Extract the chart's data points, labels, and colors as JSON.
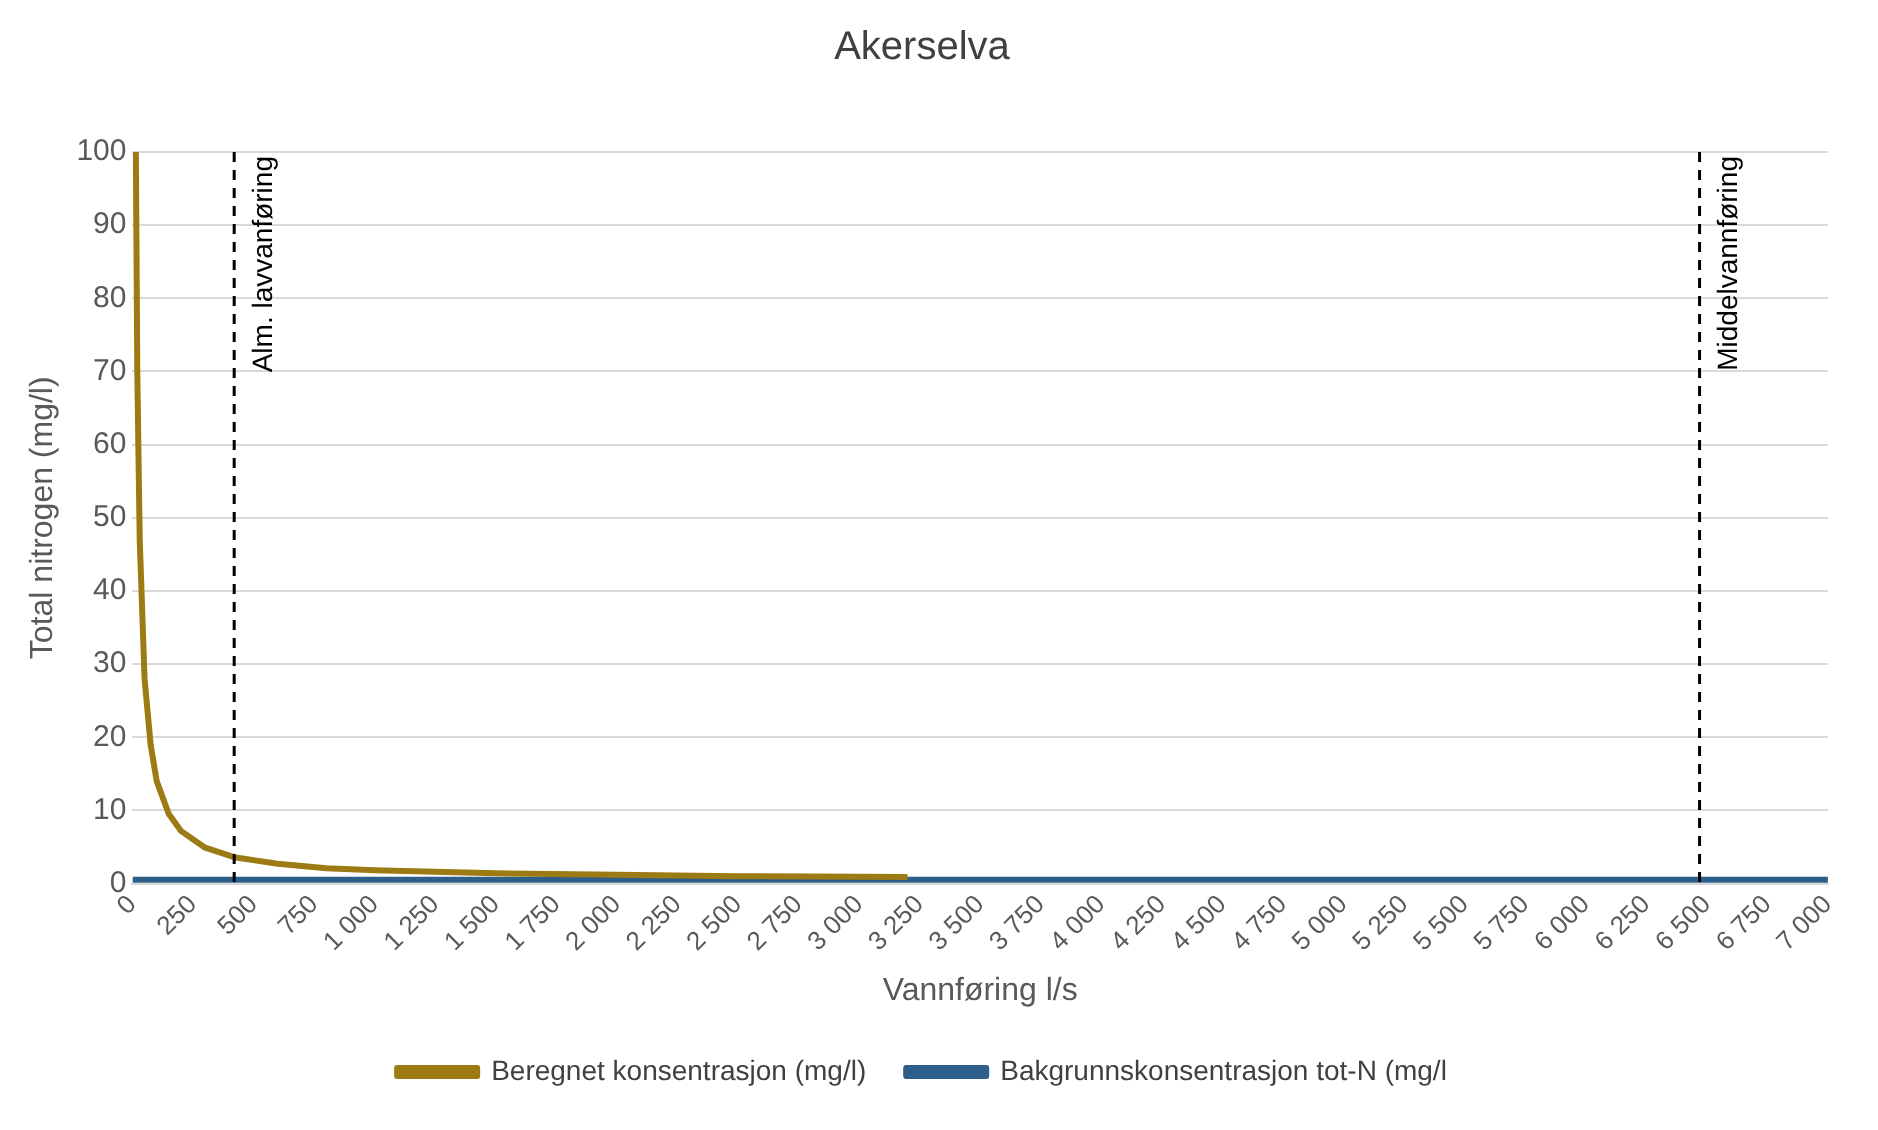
{
  "chart_data": {
    "type": "line",
    "title": "Akerselva",
    "xlabel": "Vannføring l/s",
    "ylabel": "Total nitrogen (mg/l)",
    "xlim": [
      0,
      7000
    ],
    "xticks": [
      0,
      250,
      500,
      750,
      {
        "value": 1000,
        "label": "1 000"
      },
      {
        "value": 1250,
        "label": "1 250"
      },
      {
        "value": 1500,
        "label": "1 500"
      },
      {
        "value": 1750,
        "label": "1 750"
      },
      {
        "value": 2000,
        "label": "2 000"
      },
      {
        "value": 2250,
        "label": "2 250"
      },
      {
        "value": 2500,
        "label": "2 500"
      },
      {
        "value": 2750,
        "label": "2 750"
      },
      {
        "value": 3000,
        "label": "3 000"
      },
      {
        "value": 3250,
        "label": "3 250"
      },
      {
        "value": 3500,
        "label": "3 500"
      },
      {
        "value": 3750,
        "label": "3 750"
      },
      {
        "value": 4000,
        "label": "4 000"
      },
      {
        "value": 4250,
        "label": "4 250"
      },
      {
        "value": 4500,
        "label": "4 500"
      },
      {
        "value": 4750,
        "label": "4 750"
      },
      {
        "value": 5000,
        "label": "5 000"
      },
      {
        "value": 5250,
        "label": "5 250"
      },
      {
        "value": 5500,
        "label": "5 500"
      },
      {
        "value": 5750,
        "label": "5 750"
      },
      {
        "value": 6000,
        "label": "6 000"
      },
      {
        "value": 6250,
        "label": "6 250"
      },
      {
        "value": 6500,
        "label": "6 500"
      },
      {
        "value": 6750,
        "label": "6 750"
      },
      {
        "value": 7000,
        "label": "7 000"
      }
    ],
    "ylim": [
      0,
      100
    ],
    "yticks": [
      0,
      10,
      20,
      30,
      40,
      50,
      60,
      70,
      80,
      90,
      100
    ],
    "grid": "y",
    "legend": "bottom",
    "marker": "none",
    "series": [
      {
        "name": "Beregnet konsentrasjon (mg/l)",
        "color": "#9c7a14",
        "x": [
          14,
          20,
          30,
          50,
          75,
          100,
          150,
          200,
          300,
          420,
          600,
          800,
          1000,
          1500,
          2000,
          2500,
          3200
        ],
        "values": [
          100,
          70,
          47,
          28,
          19,
          14,
          9.5,
          7.2,
          4.9,
          3.6,
          2.7,
          2.1,
          1.8,
          1.4,
          1.2,
          1.0,
          0.9
        ]
      },
      {
        "name": "Bakgrunnskonsentrasjon tot-N (mg/l",
        "color": "#2e5f8a",
        "x": [
          0,
          7000
        ],
        "values": [
          0.5,
          0.5
        ]
      }
    ],
    "ref_lines": [
      {
        "axis": "x",
        "value": 420,
        "label": "Alm. lavvanføring",
        "line_style": "dashed",
        "color": "#000000"
      },
      {
        "axis": "x",
        "value": 6470,
        "label": "Middelvannføring",
        "line_style": "dashed",
        "color": "#000000"
      }
    ]
  }
}
